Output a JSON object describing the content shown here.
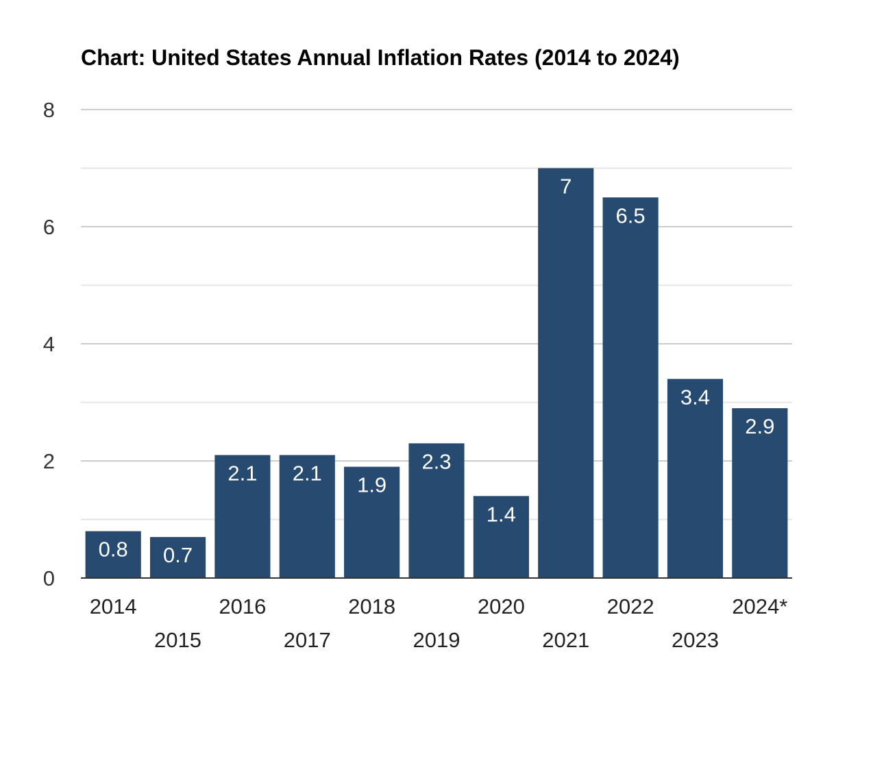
{
  "chart_data": {
    "type": "bar",
    "title": "Chart: United States Annual Inflation Rates (2014 to 2024)",
    "categories": [
      "2014",
      "2015",
      "2016",
      "2017",
      "2018",
      "2019",
      "2020",
      "2021",
      "2022",
      "2023",
      "2024*"
    ],
    "values": [
      0.8,
      0.7,
      2.1,
      2.1,
      1.9,
      2.3,
      1.4,
      7,
      6.5,
      3.4,
      2.9
    ],
    "data_labels": [
      "0.8",
      "0.7",
      "2.1",
      "2.1",
      "1.9",
      "2.3",
      "1.4",
      "7",
      "6.5",
      "3.4",
      "2.9"
    ],
    "xlabel": "",
    "ylabel": "",
    "ylim": [
      0,
      8
    ],
    "yticks": [
      "0",
      "2",
      "4",
      "6",
      "8"
    ],
    "grid": true,
    "legend": "none",
    "colors": {
      "bar": "#264a70",
      "grid_major": "#cccccc",
      "grid_minor": "#e6e6e6",
      "axis": "#333333"
    }
  }
}
